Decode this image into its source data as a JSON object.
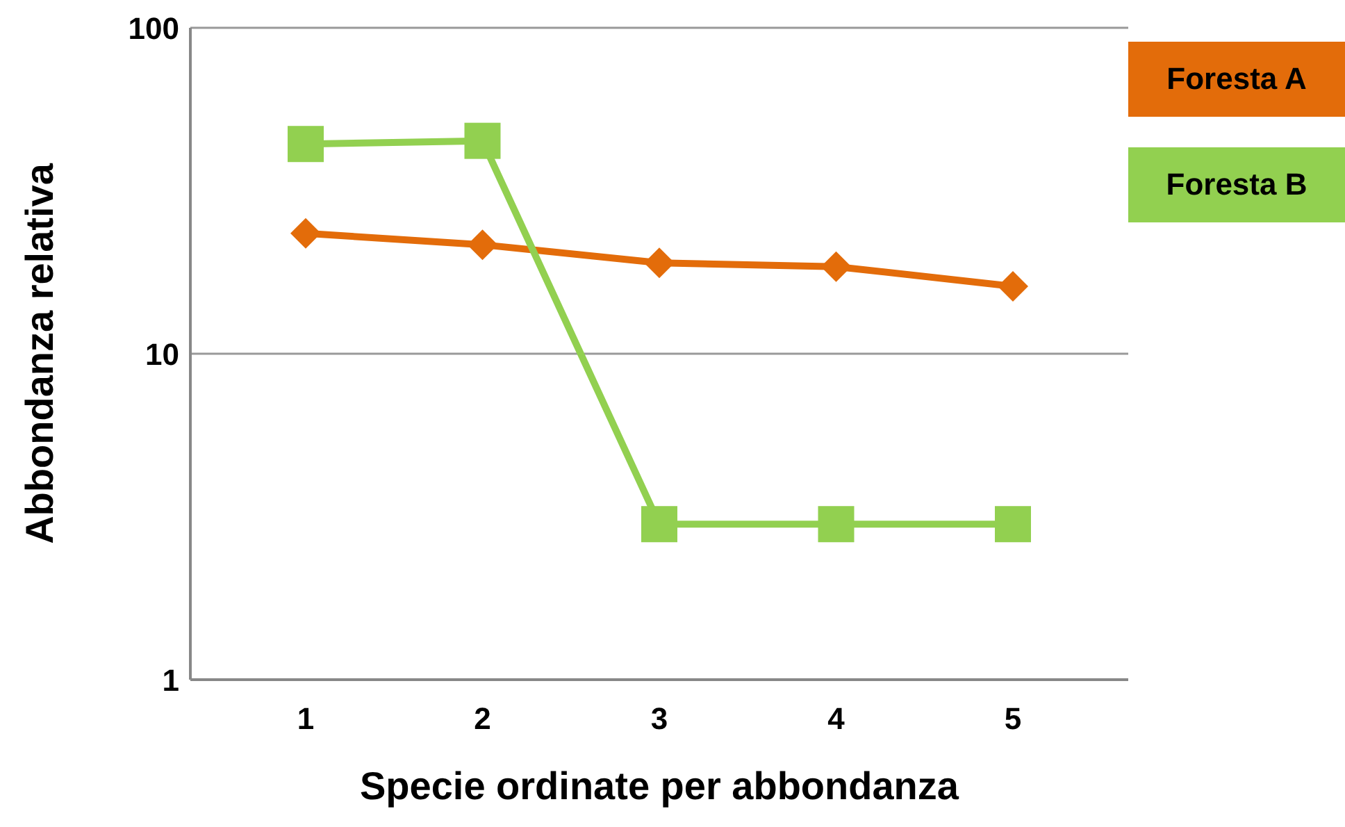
{
  "chart_data": {
    "type": "line",
    "xlabel": "Specie ordinate per abbondanza",
    "ylabel": "Abbondanza relativa",
    "categories": [
      "1",
      "2",
      "3",
      "4",
      "5"
    ],
    "series": [
      {
        "name": "Foresta A",
        "color": "#e36c0a",
        "marker": "diamond",
        "values": [
          23.4,
          21.6,
          19.0,
          18.5,
          16.1
        ]
      },
      {
        "name": "Foresta B",
        "color": "#92d050",
        "marker": "square",
        "values": [
          44,
          45,
          3.0,
          3.0,
          3.0
        ]
      }
    ],
    "log": "y",
    "ylim": [
      1,
      100
    ],
    "yticks": [
      1,
      10,
      100
    ],
    "grid": "y",
    "legend": "top right"
  }
}
